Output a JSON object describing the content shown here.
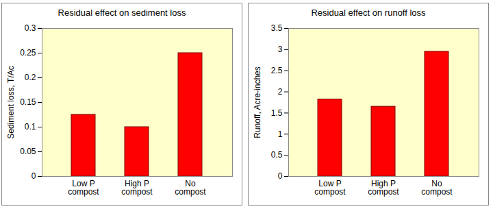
{
  "chart_data": [
    {
      "type": "bar",
      "title": "Residual effect on sediment loss",
      "y_label": "Sediment loss, T/Ac",
      "categories": [
        "Low P compost",
        "High P compost",
        "No compost"
      ],
      "values": [
        0.125,
        0.1,
        0.25
      ],
      "color": "#ff0000",
      "ylim": [
        0,
        0.3
      ],
      "yticks": [
        0,
        0.05,
        0.1,
        0.15,
        0.2,
        0.25,
        0.3
      ],
      "grid": false
    },
    {
      "type": "bar",
      "title": "Residual effect on runoff loss",
      "y_label": "Runoff, Acre-inches",
      "categories": [
        "Low P compost",
        "High P compost",
        "No compost"
      ],
      "values": [
        1.82,
        1.65,
        2.95
      ],
      "color": "#ff0000",
      "ylim": [
        0,
        3.5
      ],
      "yticks": [
        0,
        0.5,
        1,
        1.5,
        2,
        2.5,
        3,
        3.5
      ],
      "grid": false
    }
  ]
}
